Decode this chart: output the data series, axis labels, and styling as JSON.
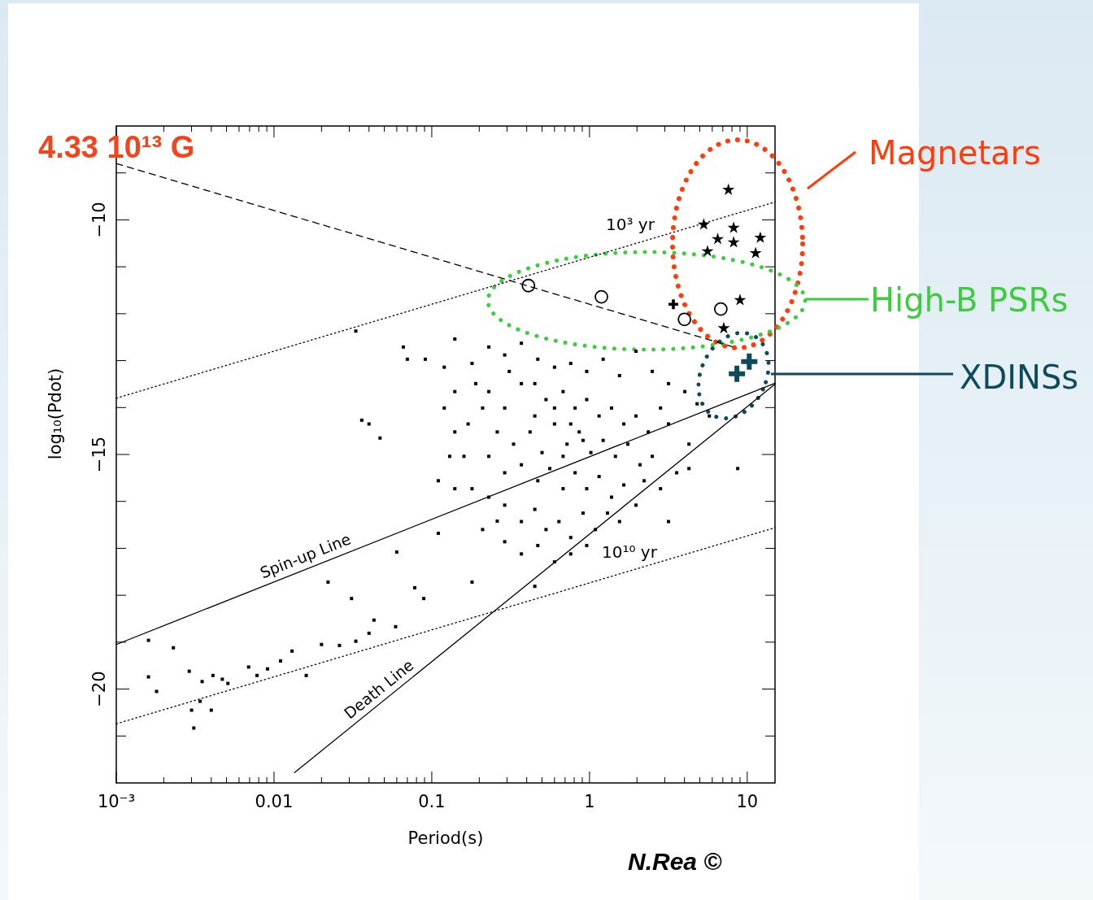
{
  "chart_data": {
    "type": "scatter",
    "xlabel": "Period(s)",
    "ylabel": "log₁₀(Pdot)",
    "xlim": [
      0.001,
      15
    ],
    "ylim": [
      -22,
      -8
    ],
    "log": "x",
    "grid": false,
    "xticks": [
      {
        "value": 0.001,
        "label": "10⁻³"
      },
      {
        "value": 0.002,
        "label": null
      },
      {
        "value": 0.003,
        "label": null
      },
      {
        "value": 0.004,
        "label": null
      },
      {
        "value": 0.005,
        "label": null
      },
      {
        "value": 0.006,
        "label": null
      },
      {
        "value": 0.007,
        "label": null
      },
      {
        "value": 0.008,
        "label": null
      },
      {
        "value": 0.009,
        "label": null
      },
      {
        "value": 0.01,
        "label": "0.01"
      },
      {
        "value": 0.02,
        "label": null
      },
      {
        "value": 0.03,
        "label": null
      },
      {
        "value": 0.04,
        "label": null
      },
      {
        "value": 0.05,
        "label": null
      },
      {
        "value": 0.06,
        "label": null
      },
      {
        "value": 0.07,
        "label": null
      },
      {
        "value": 0.08,
        "label": null
      },
      {
        "value": 0.09,
        "label": null
      },
      {
        "value": 0.1,
        "label": "0.1"
      },
      {
        "value": 0.2,
        "label": null
      },
      {
        "value": 0.3,
        "label": null
      },
      {
        "value": 0.4,
        "label": null
      },
      {
        "value": 0.5,
        "label": null
      },
      {
        "value": 0.6,
        "label": null
      },
      {
        "value": 0.7,
        "label": null
      },
      {
        "value": 0.8,
        "label": null
      },
      {
        "value": 0.9,
        "label": null
      },
      {
        "value": 1,
        "label": "1"
      },
      {
        "value": 2,
        "label": null
      },
      {
        "value": 3,
        "label": null
      },
      {
        "value": 4,
        "label": null
      },
      {
        "value": 5,
        "label": null
      },
      {
        "value": 6,
        "label": null
      },
      {
        "value": 7,
        "label": null
      },
      {
        "value": 8,
        "label": null
      },
      {
        "value": 9,
        "label": null
      },
      {
        "value": 10,
        "label": "10"
      }
    ],
    "yticks": [
      {
        "value": -9,
        "label": null
      },
      {
        "value": -10,
        "label": "−10"
      },
      {
        "value": -11,
        "label": null
      },
      {
        "value": -12,
        "label": null
      },
      {
        "value": -13,
        "label": null
      },
      {
        "value": -14,
        "label": null
      },
      {
        "value": -15,
        "label": "−15"
      },
      {
        "value": -16,
        "label": null
      },
      {
        "value": -17,
        "label": null
      },
      {
        "value": -18,
        "label": null
      },
      {
        "value": -19,
        "label": null
      },
      {
        "value": -20,
        "label": "−20"
      },
      {
        "value": -21,
        "label": null
      }
    ],
    "series": [
      {
        "type": "line",
        "line_style": "dashed",
        "color": "#000000",
        "x": [
          0.001,
          8
        ],
        "values": [
          -8.8,
          -12.7
        ]
      },
      {
        "type": "line",
        "line_style": "dotted",
        "color": "#000000",
        "x": [
          0.001,
          15
        ],
        "values": [
          -13.8,
          -9.62
        ]
      },
      {
        "type": "line",
        "line_style": "dotted",
        "color": "#000000",
        "x": [
          0.001,
          15
        ],
        "values": [
          -20.74,
          -16.56
        ]
      },
      {
        "type": "line",
        "line_style": "solid",
        "color": "#000000",
        "x": [
          0.001,
          15
        ],
        "values": [
          -19.05,
          -13.48
        ]
      },
      {
        "type": "line",
        "line_style": "solid",
        "color": "#000000",
        "x": [
          0.0135,
          15
        ],
        "values": [
          -21.78,
          -13.5
        ]
      },
      {
        "marker": "square",
        "color": "#000000",
        "x": [
          0.0016,
          0.0023,
          0.0016,
          0.0018,
          0.003,
          0.0029,
          0.0035,
          0.0041,
          0.0047,
          0.0051,
          0.0034,
          0.0031,
          0.004,
          0.0069,
          0.0078,
          0.0091,
          0.011,
          0.013,
          0.016,
          0.02,
          0.026,
          0.033,
          0.04,
          0.059,
          0.043,
          0.078,
          0.022,
          0.031,
          0.033,
          0.036,
          0.047,
          0.04,
          0.11,
          0.06,
          0.089,
          0.11,
          0.18,
          0.26,
          0.066,
          0.07,
          0.091,
          0.12,
          0.14,
          0.18,
          0.23,
          0.29,
          0.37,
          0.47,
          0.6,
          0.76,
          0.96,
          1.22,
          1.55,
          1.97,
          2.5,
          3.17,
          4.02,
          4.81,
          5.75,
          4.27,
          3.17,
          2.82,
          8.7,
          0.23,
          0.29,
          0.37,
          0.45,
          0.53,
          0.68,
          0.81,
          0.96,
          1.15,
          1.38,
          1.65,
          1.97,
          2.36,
          0.26,
          0.33,
          0.42,
          0.5,
          0.6,
          0.72,
          0.86,
          1.02,
          1.22,
          1.46,
          1.75,
          2.09,
          0.23,
          0.29,
          0.37,
          0.47,
          0.56,
          0.68,
          0.81,
          0.96,
          1.15,
          1.38,
          1.65,
          0.23,
          0.29,
          0.37,
          0.45,
          0.53,
          0.64,
          0.76,
          0.91,
          1.09,
          1.3,
          0.29,
          0.37,
          0.47,
          0.6,
          0.76,
          0.96,
          0.21,
          0.18,
          0.16,
          0.17,
          0.21,
          2.82,
          3.57,
          3.17,
          2.5,
          0.6,
          0.76,
          0.68,
          0.91,
          0.45,
          0.31,
          0.19,
          0.14,
          0.12,
          0.14,
          0.13,
          0.14,
          1.55,
          1.97,
          2.22,
          4.27,
          0.45
        ],
        "values": [
          -18.96,
          -19.12,
          -19.74,
          -20.05,
          -20.45,
          -19.62,
          -19.84,
          -19.71,
          -19.79,
          -19.88,
          -20.26,
          -20.83,
          -20.45,
          -19.53,
          -19.71,
          -19.57,
          -19.4,
          -19.19,
          -19.71,
          -19.05,
          -19.07,
          -18.98,
          -18.81,
          -18.67,
          -18.53,
          -17.84,
          -17.72,
          -18.07,
          -12.37,
          -14.27,
          -14.65,
          -14.35,
          -15.56,
          -17.08,
          -18.07,
          -16.68,
          -17.72,
          -16.42,
          -12.71,
          -12.97,
          -12.97,
          -13.14,
          -12.54,
          -13.06,
          -12.71,
          -12.88,
          -12.63,
          -12.97,
          -13.14,
          -13.06,
          -13.23,
          -12.97,
          -13.32,
          -12.8,
          -13.23,
          -13.49,
          -13.66,
          -13.92,
          -14.18,
          -14.78,
          -14.35,
          -14.01,
          -15.3,
          -13.66,
          -14.01,
          -13.49,
          -14.18,
          -13.83,
          -13.66,
          -14.01,
          -13.83,
          -14.18,
          -14.01,
          -14.35,
          -14.18,
          -14.52,
          -14.52,
          -14.78,
          -14.52,
          -14.96,
          -14.35,
          -14.78,
          -14.52,
          -14.96,
          -14.7,
          -15.04,
          -14.78,
          -15.22,
          -15.04,
          -15.39,
          -15.22,
          -15.56,
          -15.3,
          -15.73,
          -15.39,
          -15.73,
          -15.47,
          -15.91,
          -15.65,
          -15.91,
          -16.08,
          -16.43,
          -16.17,
          -16.6,
          -16.43,
          -16.77,
          -16.25,
          -16.6,
          -16.25,
          -16.86,
          -17.12,
          -16.94,
          -17.29,
          -17.12,
          -16.94,
          -16.6,
          -15.73,
          -15.04,
          -14.35,
          -14.01,
          -15.73,
          -15.39,
          -16.43,
          -15.04,
          -14.01,
          -14.35,
          -15.04,
          -14.7,
          -13.49,
          -13.23,
          -13.49,
          -13.66,
          -14.01,
          -14.52,
          -15.04,
          -15.73,
          -16.43,
          -16.08,
          -15.56,
          -15.3,
          -17.81
        ]
      },
      {
        "marker": "star",
        "color": "#000000",
        "x": [
          7.6,
          5.3,
          8.2,
          6.5,
          8.2,
          12.1,
          5.6,
          11.3,
          9.0,
          7.1
        ],
        "values": [
          -9.36,
          -10.1,
          -10.17,
          -10.41,
          -10.48,
          -10.38,
          -10.67,
          -10.71,
          -11.71,
          -12.31
        ]
      },
      {
        "marker": "circle",
        "color": "#000000",
        "x": [
          0.41,
          1.19,
          6.8,
          4.0
        ],
        "values": [
          -11.4,
          -11.64,
          -11.9,
          -12.12
        ]
      },
      {
        "marker": "cross",
        "color": "#000000",
        "x": [
          3.4
        ],
        "values": [
          -11.8
        ]
      },
      {
        "marker": "cross",
        "color": "#0d4a5c",
        "x": [
          8.6,
          10.3
        ],
        "values": [
          -13.28,
          -13.02
        ]
      }
    ],
    "annotations": [
      "4.33 10¹³ G",
      "10³ yr",
      "10¹⁰ yr",
      "Spin-up Line",
      "Death Line",
      "Magnetars",
      "High-B PSRs",
      "XDINSs",
      "N.Rea ©"
    ]
  }
}
